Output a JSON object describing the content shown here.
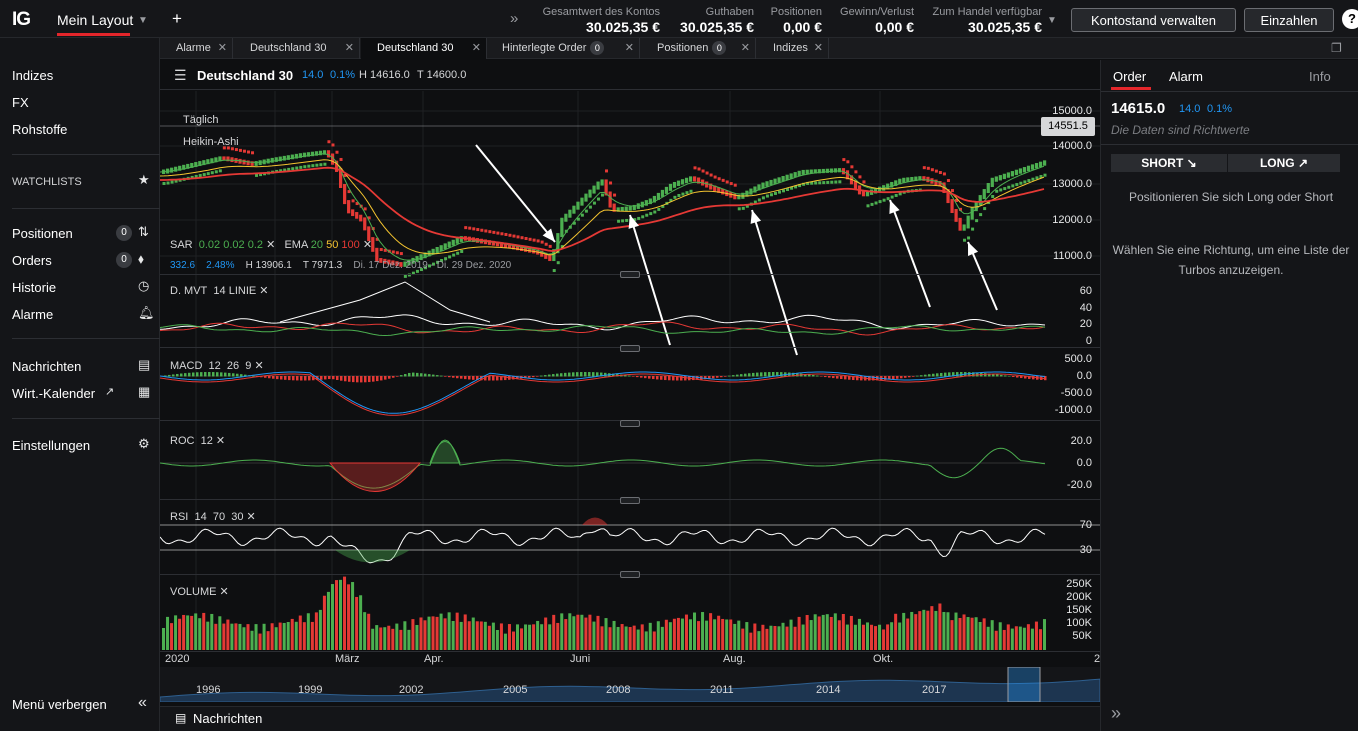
{
  "topbar": {
    "logo": "IG",
    "layout_name": "Mein Layout",
    "add": "+",
    "expand": "»",
    "stats": [
      {
        "label": "Gesamtwert des Kontos",
        "value": "30.025,35 €"
      },
      {
        "label": "Guthaben",
        "value": "30.025,35 €"
      },
      {
        "label": "Positionen",
        "value": "0,00 €"
      },
      {
        "label": "Gewinn/Verlust",
        "value": "0,00 €"
      },
      {
        "label": "Zum Handel verfügbar",
        "value": "30.025,35 €"
      }
    ],
    "manage_button": "Kontostand verwalten",
    "deposit_button": "Einzahlen",
    "help": "?"
  },
  "sidebar": {
    "items": [
      "Indizes",
      "FX",
      "Rohstoffe"
    ],
    "watchlists": "WATCHLISTS",
    "positions": "Positionen",
    "positions_count": "0",
    "orders": "Orders",
    "orders_count": "0",
    "history": "Historie",
    "alarms": "Alarme",
    "news": "Nachrichten",
    "calendar": "Wirt.-Kalender",
    "settings": "Einstellungen",
    "hide_menu": "Menü verbergen",
    "hide_icon": "«"
  },
  "tabs": [
    {
      "label": "Alarme",
      "badge": ""
    },
    {
      "label": "Deutschland 30",
      "badge": ""
    },
    {
      "label": "Deutschland 30",
      "badge": ""
    },
    {
      "label": "Hinterlegte Order",
      "badge": "0"
    },
    {
      "label": "Positionen",
      "badge": "0"
    },
    {
      "label": "Indizes",
      "badge": ""
    }
  ],
  "chart_header": {
    "title": "Deutschland 30",
    "change": "14.0",
    "change_pct": "0.1%",
    "high": "H 14616.0",
    "low": "T 14600.0"
  },
  "price_panel": {
    "interval": "Täglich",
    "style": "Heikin-Ashi",
    "current_price": "14551.5",
    "sar": {
      "name": "SAR",
      "p1": "0.02",
      "p2": "0.02",
      "p3": "0.2"
    },
    "ema": {
      "name": "EMA",
      "p1": "20",
      "p2": "50",
      "p3": "100"
    },
    "change_val": "332.6",
    "change_pct": "2.48%",
    "high": "H 13906.1",
    "low": "T 7971.3",
    "date_range": "Di. 17 Dez. 2019 - Di. 29 Dez. 2020",
    "yticks": [
      "15000.0",
      "14000.0",
      "13000.0",
      "12000.0",
      "11000.0"
    ]
  },
  "dmvt": {
    "name": "D. MVT",
    "p1": "14",
    "p2": "LINIE",
    "yticks": [
      "60",
      "40",
      "20",
      "0"
    ]
  },
  "macd": {
    "name": "MACD",
    "p1": "12",
    "p2": "26",
    "p3": "9",
    "yticks": [
      "500.0",
      "0.0",
      "-500.0",
      "-1000.0"
    ]
  },
  "roc": {
    "name": "ROC",
    "p1": "12",
    "yticks": [
      "20.0",
      "0.0",
      "-20.0"
    ]
  },
  "rsi": {
    "name": "RSI",
    "p1": "14",
    "p2": "70",
    "p3": "30",
    "yticks": [
      "70",
      "30"
    ]
  },
  "volume": {
    "name": "VOLUME",
    "yticks": [
      "250K",
      "200K",
      "150K",
      "100K",
      "50K"
    ]
  },
  "xaxis": [
    "2020",
    "März",
    "Apr.",
    "Juni",
    "Aug.",
    "Okt.",
    "2"
  ],
  "navigator": {
    "years": [
      "1996",
      "1999",
      "2002",
      "2005",
      "2008",
      "2011",
      "2014",
      "2017"
    ]
  },
  "bottom": {
    "label": "Nachrichten"
  },
  "right": {
    "tab_order": "Order",
    "tab_alarm": "Alarm",
    "tab_info": "Info",
    "price": "14615.0",
    "change": "14.0",
    "change_pct": "0.1%",
    "note": "Die Daten sind Richtwerte",
    "short": "SHORT ↘",
    "long": "LONG ↗",
    "msg1": "Positionieren Sie sich Long oder Short",
    "msg2": "Wählen Sie eine Richtung, um eine Liste der Turbos anzuzeigen.",
    "collapse": "»"
  },
  "colors": {
    "accent": "#e4262b",
    "bull": "#4caf50",
    "bear": "#e53935",
    "blue": "#2196f3",
    "yellow": "#f4c430"
  }
}
